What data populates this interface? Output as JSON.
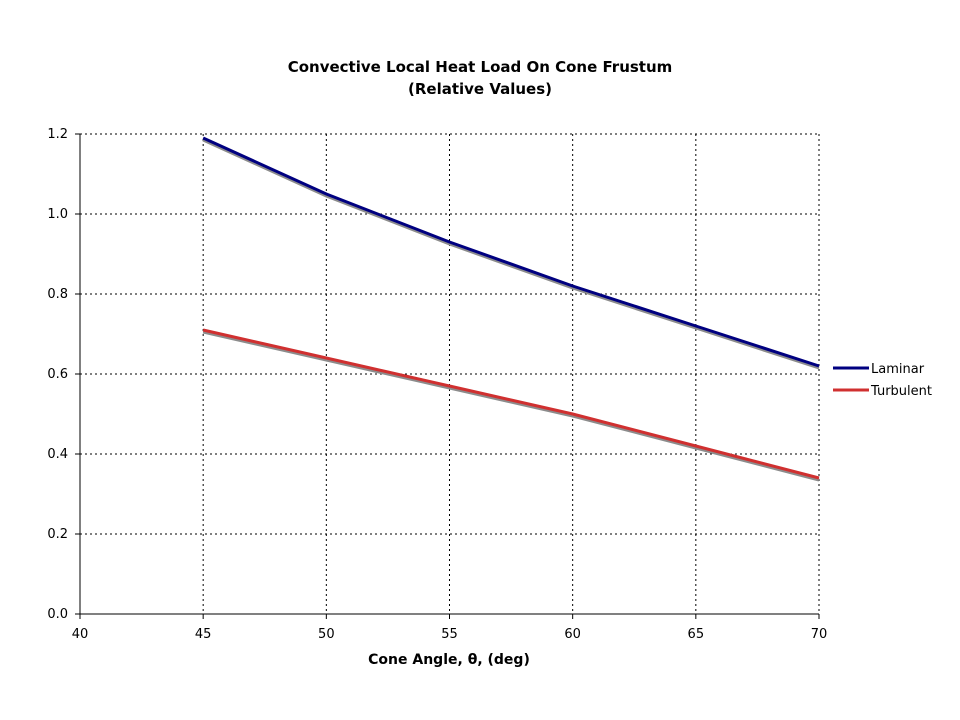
{
  "chart_data": {
    "type": "line",
    "title": "Convective Local Heat Load On Cone Frustum",
    "subtitle": "(Relative Values)",
    "xlabel": "Cone Angle, θ, (deg)",
    "ylabel": "",
    "xlim": [
      40,
      70
    ],
    "ylim": [
      0.0,
      1.2
    ],
    "x_ticks": [
      "40",
      "45",
      "50",
      "55",
      "60",
      "65",
      "70"
    ],
    "y_ticks": [
      "0.0",
      "0.2",
      "0.4",
      "0.6",
      "0.8",
      "1.0",
      "1.2"
    ],
    "grid": true,
    "legend_position": "right",
    "series": [
      {
        "name": "Laminar",
        "color": "#000080",
        "x": [
          45,
          50,
          55,
          60,
          65,
          70
        ],
        "values": [
          1.19,
          1.05,
          0.93,
          0.82,
          0.72,
          0.62
        ]
      },
      {
        "name": "Turbulent",
        "color": "#d03030",
        "x": [
          45,
          50,
          55,
          60,
          65,
          70
        ],
        "values": [
          0.71,
          0.64,
          0.57,
          0.5,
          0.42,
          0.34
        ]
      }
    ]
  }
}
